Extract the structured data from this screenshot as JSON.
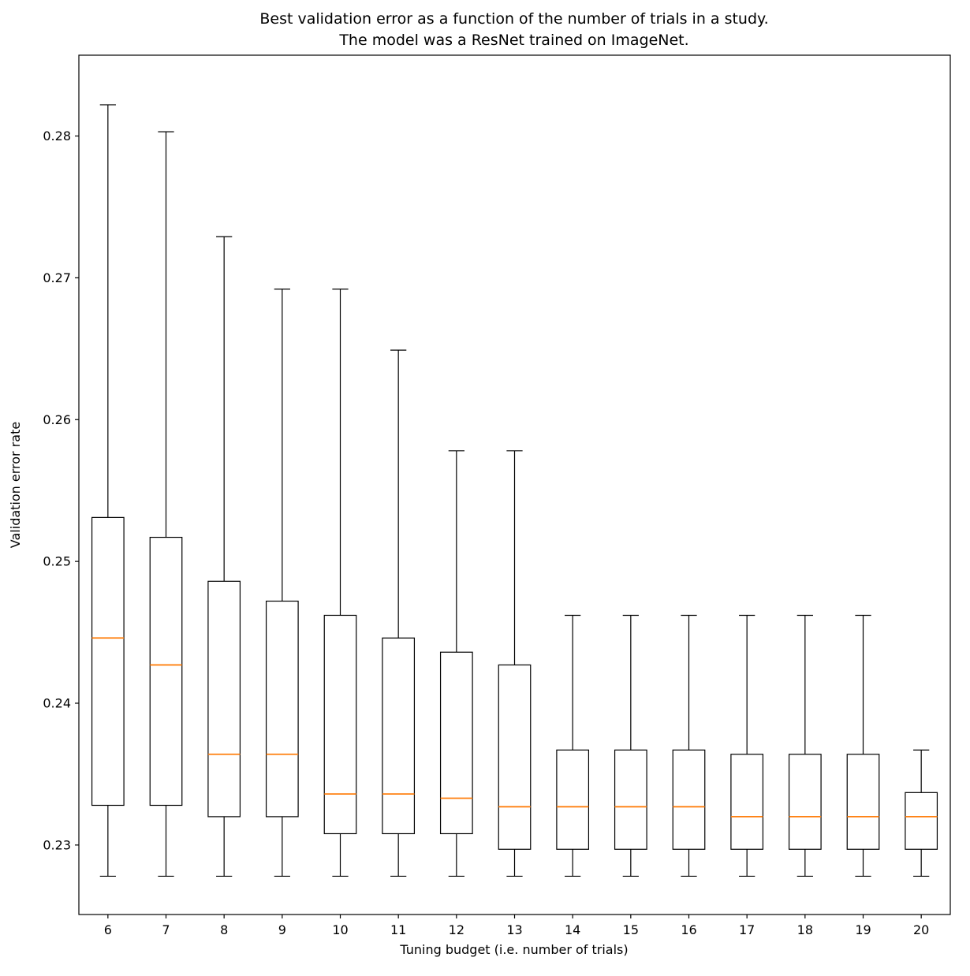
{
  "chart_data": {
    "type": "boxplot",
    "title": "Best validation error as a function of the number of trials in a study.\nThe model was a ResNet trained on ImageNet.",
    "title_line1": "Best validation error as a function of the number of trials in a study.",
    "title_line2": "The model was a ResNet trained on ImageNet.",
    "xlabel": "Tuning budget (i.e. number of trials)",
    "ylabel": "Validation error rate",
    "categories": [
      "6",
      "7",
      "8",
      "9",
      "10",
      "11",
      "12",
      "13",
      "14",
      "15",
      "16",
      "17",
      "18",
      "19",
      "20"
    ],
    "yticks": [
      0.23,
      0.24,
      0.25,
      0.26,
      0.27,
      0.28
    ],
    "ytick_labels": [
      "0.23",
      "0.24",
      "0.25",
      "0.26",
      "0.27",
      "0.28"
    ],
    "ylim": [
      0.2251,
      0.2857
    ],
    "grid": false,
    "legend": "none",
    "colors": {
      "box": "#000000",
      "median": "#ff7f0e",
      "background": "#ffffff"
    },
    "boxes": [
      {
        "label": "6",
        "whislo": 0.2278,
        "q1": 0.2328,
        "med": 0.2446,
        "q3": 0.2531,
        "whishi": 0.2822
      },
      {
        "label": "7",
        "whislo": 0.2278,
        "q1": 0.2328,
        "med": 0.2427,
        "q3": 0.2517,
        "whishi": 0.2803
      },
      {
        "label": "8",
        "whislo": 0.2278,
        "q1": 0.232,
        "med": 0.2364,
        "q3": 0.2486,
        "whishi": 0.2729
      },
      {
        "label": "9",
        "whislo": 0.2278,
        "q1": 0.232,
        "med": 0.2364,
        "q3": 0.2472,
        "whishi": 0.2692
      },
      {
        "label": "10",
        "whislo": 0.2278,
        "q1": 0.2308,
        "med": 0.2336,
        "q3": 0.2462,
        "whishi": 0.2692
      },
      {
        "label": "11",
        "whislo": 0.2278,
        "q1": 0.2308,
        "med": 0.2336,
        "q3": 0.2446,
        "whishi": 0.2649
      },
      {
        "label": "12",
        "whislo": 0.2278,
        "q1": 0.2308,
        "med": 0.2333,
        "q3": 0.2436,
        "whishi": 0.2578
      },
      {
        "label": "13",
        "whislo": 0.2278,
        "q1": 0.2297,
        "med": 0.2327,
        "q3": 0.2427,
        "whishi": 0.2578
      },
      {
        "label": "14",
        "whislo": 0.2278,
        "q1": 0.2297,
        "med": 0.2327,
        "q3": 0.2367,
        "whishi": 0.2462
      },
      {
        "label": "15",
        "whislo": 0.2278,
        "q1": 0.2297,
        "med": 0.2327,
        "q3": 0.2367,
        "whishi": 0.2462
      },
      {
        "label": "16",
        "whislo": 0.2278,
        "q1": 0.2297,
        "med": 0.2327,
        "q3": 0.2367,
        "whishi": 0.2462
      },
      {
        "label": "17",
        "whislo": 0.2278,
        "q1": 0.2297,
        "med": 0.232,
        "q3": 0.2364,
        "whishi": 0.2462
      },
      {
        "label": "18",
        "whislo": 0.2278,
        "q1": 0.2297,
        "med": 0.232,
        "q3": 0.2364,
        "whishi": 0.2462
      },
      {
        "label": "19",
        "whislo": 0.2278,
        "q1": 0.2297,
        "med": 0.232,
        "q3": 0.2364,
        "whishi": 0.2462
      },
      {
        "label": "20",
        "whislo": 0.2278,
        "q1": 0.2297,
        "med": 0.232,
        "q3": 0.2337,
        "whishi": 0.2367
      }
    ]
  }
}
